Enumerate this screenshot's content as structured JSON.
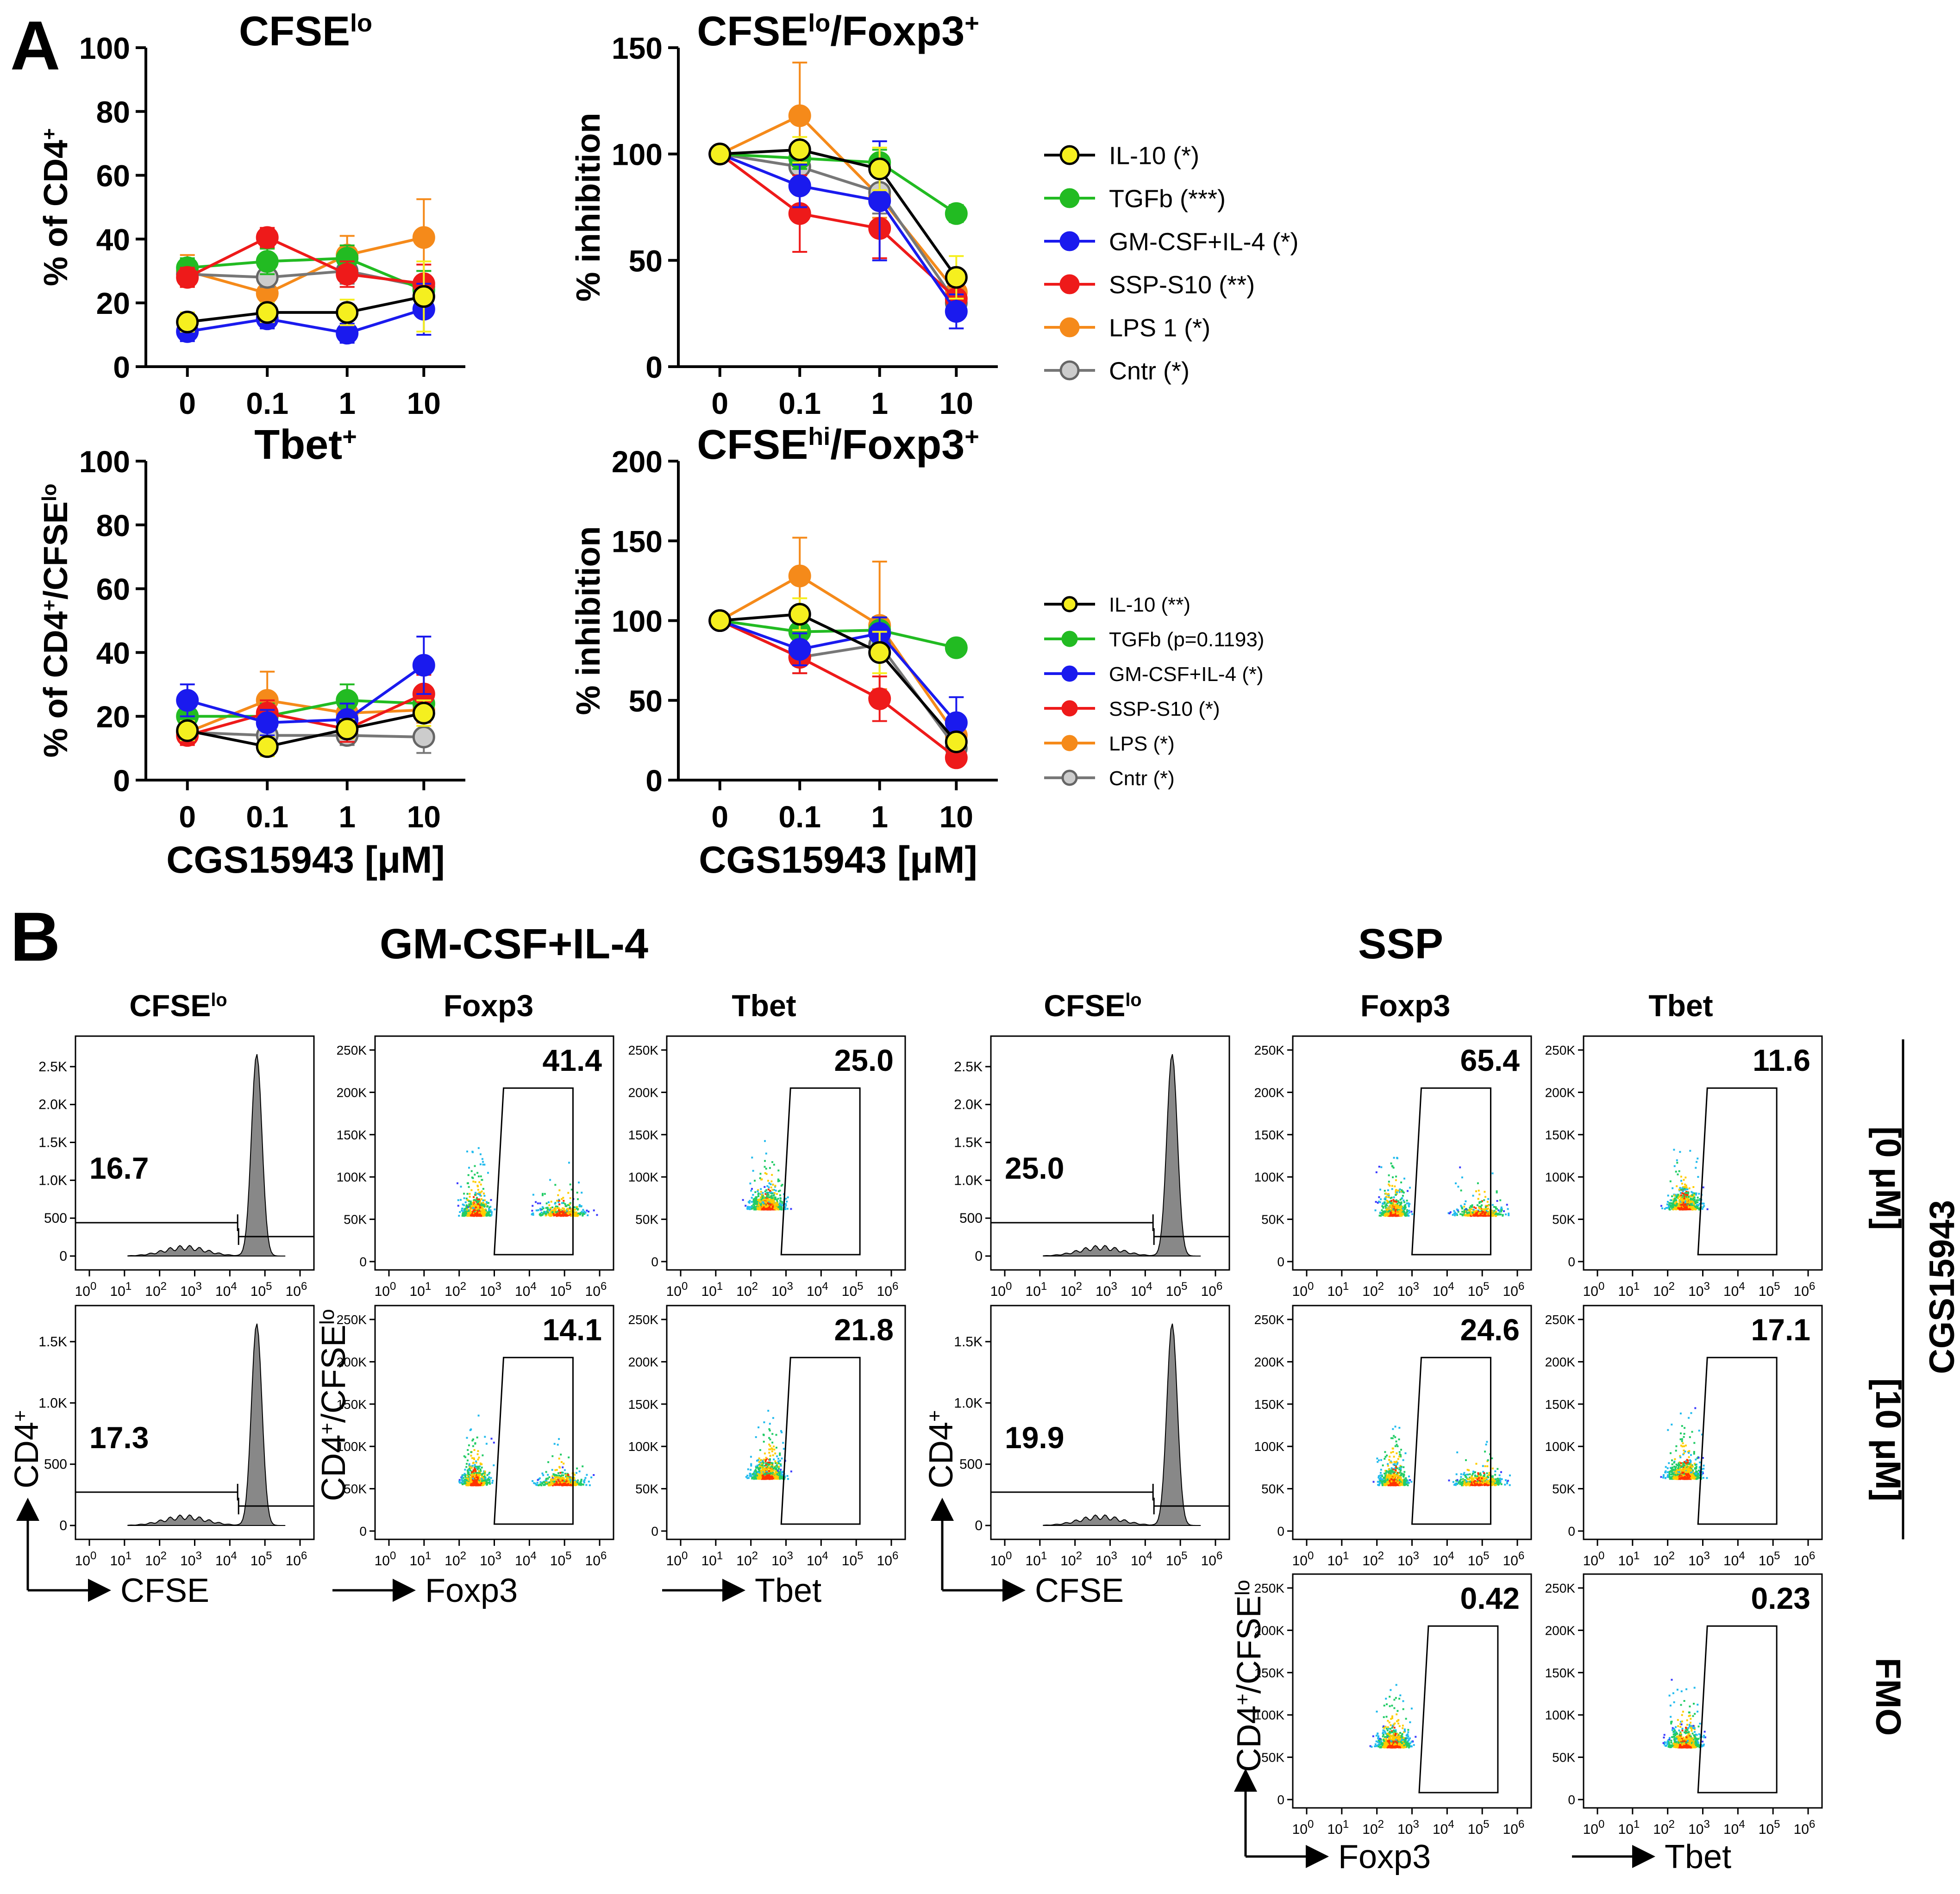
{
  "panels": {
    "A": {
      "letter": "A"
    },
    "B": {
      "letter": "B",
      "group_gm": "GM-CSF+IL-4",
      "group_ssp": "SSP"
    }
  },
  "colors": {
    "IL-10": "#f5ef1f",
    "TGFb": "#22bb22",
    "GM-CSF+IL-4": "#1a1aee",
    "SSP-S10": "#ee1a1a",
    "LPS": "#f58a1a",
    "Cntr": "#cccccc"
  },
  "legend_top": [
    "IL-10 (*)",
    "TGFb (***)",
    "GM-CSF+IL-4 (*)",
    "SSP-S10 (**)",
    "LPS 1 (*)",
    "Cntr (*)"
  ],
  "legend_bottom": [
    "IL-10 (**)",
    "TGFb (p=0.1193)",
    "GM-CSF+IL-4 (*)",
    "SSP-S10 (*)",
    "LPS (*)",
    "Cntr (*)"
  ],
  "chart_data": [
    {
      "id": "cfselo",
      "type": "line",
      "title": "CFSE",
      "title_sup": "lo",
      "ylabel": "% of CD4",
      "ylabel_sup": "+",
      "xlabel": "",
      "categories": [
        "0",
        "0.1",
        "1",
        "10"
      ],
      "ylim": [
        0,
        100
      ],
      "yticks": [
        0,
        20,
        40,
        60,
        80,
        100
      ],
      "series": [
        {
          "name": "LPS",
          "values": [
            30,
            23,
            35,
            40.5
          ],
          "err": [
            5,
            4,
            6,
            12
          ]
        },
        {
          "name": "Cntr",
          "values": [
            29,
            28,
            30,
            25
          ],
          "err": [
            3,
            3,
            4,
            5
          ]
        },
        {
          "name": "TGFb",
          "values": [
            31,
            33,
            34,
            24
          ],
          "err": [
            3,
            4,
            4,
            6
          ]
        },
        {
          "name": "SSP-S10",
          "values": [
            28,
            40.5,
            29,
            26
          ],
          "err": [
            3,
            3,
            4,
            6
          ]
        },
        {
          "name": "GM-CSF+IL-4",
          "values": [
            11,
            15,
            10.5,
            18
          ],
          "err": [
            3,
            3,
            3,
            8
          ]
        },
        {
          "name": "IL-10",
          "values": [
            14,
            17,
            17,
            22
          ],
          "err": [
            3,
            3,
            4,
            11
          ]
        }
      ]
    },
    {
      "id": "foxp3lo",
      "type": "line",
      "title": "CFSE",
      "title_sup": "lo",
      "title_rest": "/Foxp3",
      "title_rest_sup": "+",
      "ylabel": "% inhibition",
      "xlabel": "",
      "categories": [
        "0",
        "0.1",
        "1",
        "10"
      ],
      "ylim": [
        0,
        150
      ],
      "yticks": [
        0,
        50,
        100,
        150
      ],
      "series": [
        {
          "name": "LPS",
          "values": [
            100,
            118,
            80,
            35
          ],
          "err": [
            0,
            25,
            10,
            6
          ]
        },
        {
          "name": "Cntr",
          "values": [
            100,
            94,
            82,
            30
          ],
          "err": [
            0,
            10,
            10,
            6
          ]
        },
        {
          "name": "TGFb",
          "values": [
            100,
            98,
            96,
            72
          ],
          "err": [
            0,
            5,
            6,
            4
          ]
        },
        {
          "name": "SSP-S10",
          "values": [
            100,
            72,
            65,
            32
          ],
          "err": [
            0,
            18,
            14,
            6
          ]
        },
        {
          "name": "GM-CSF+IL-4",
          "values": [
            100,
            85,
            78,
            26
          ],
          "err": [
            0,
            10,
            28,
            8
          ]
        },
        {
          "name": "IL-10",
          "values": [
            100,
            102,
            93,
            42
          ],
          "err": [
            0,
            6,
            10,
            10
          ]
        }
      ]
    },
    {
      "id": "tbet",
      "type": "line",
      "title": "Tbet",
      "title_sup": "+",
      "ylabel": "% of CD4",
      "ylabel_sup": "+",
      "ylabel_rest": "/CFSE",
      "ylabel_rest_sup": "lo",
      "xlabel": "CGS15943 [μM]",
      "categories": [
        "0",
        "0.1",
        "1",
        "10"
      ],
      "ylim": [
        0,
        100
      ],
      "yticks": [
        0,
        20,
        40,
        60,
        80,
        100
      ],
      "series": [
        {
          "name": "LPS",
          "values": [
            15,
            25,
            21,
            22
          ],
          "err": [
            3,
            9,
            5,
            4
          ]
        },
        {
          "name": "Cntr",
          "values": [
            15,
            14,
            14,
            13.5
          ],
          "err": [
            3,
            3,
            3,
            5
          ]
        },
        {
          "name": "TGFb",
          "values": [
            20,
            20,
            25,
            24
          ],
          "err": [
            3,
            4,
            5,
            5
          ]
        },
        {
          "name": "SSP-S10",
          "values": [
            14,
            21,
            16,
            27
          ],
          "err": [
            3,
            4,
            4,
            6
          ]
        },
        {
          "name": "GM-CSF+IL-4",
          "values": [
            25,
            18,
            19,
            36
          ],
          "err": [
            5,
            4,
            5,
            9
          ]
        },
        {
          "name": "IL-10",
          "values": [
            15.5,
            10.5,
            16,
            21
          ],
          "err": [
            3,
            3,
            3,
            4
          ]
        }
      ]
    },
    {
      "id": "foxp3hi",
      "type": "line",
      "title": "CFSE",
      "title_sup": "hi",
      "title_rest": "/Foxp3",
      "title_rest_sup": "+",
      "ylabel": "% inhibition",
      "xlabel": "CGS15943 [μM]",
      "categories": [
        "0",
        "0.1",
        "1",
        "10"
      ],
      "ylim": [
        0,
        200
      ],
      "yticks": [
        0,
        50,
        100,
        150,
        200
      ],
      "series": [
        {
          "name": "LPS",
          "values": [
            100,
            128,
            97,
            28
          ],
          "err": [
            0,
            24,
            40,
            8
          ]
        },
        {
          "name": "Cntr",
          "values": [
            100,
            77,
            85,
            20
          ],
          "err": [
            0,
            10,
            10,
            6
          ]
        },
        {
          "name": "TGFb",
          "values": [
            100,
            93,
            94,
            83
          ],
          "err": [
            0,
            8,
            8,
            4
          ]
        },
        {
          "name": "SSP-S10",
          "values": [
            100,
            77,
            51,
            14
          ],
          "err": [
            0,
            10,
            14,
            4
          ]
        },
        {
          "name": "GM-CSF+IL-4",
          "values": [
            100,
            82,
            92,
            36
          ],
          "err": [
            0,
            10,
            10,
            16
          ]
        },
        {
          "name": "IL-10",
          "values": [
            100,
            104,
            80,
            24
          ],
          "err": [
            0,
            10,
            13,
            5
          ]
        }
      ]
    }
  ],
  "flow": {
    "col_titles": {
      "cfse": "CFSE",
      "cfse_sup": "lo",
      "foxp3": "Foxp3",
      "tbet": "Tbet"
    },
    "axis_labels": {
      "cd4": "CD4",
      "cd4_sup": "+",
      "cd4cfse": "CD4",
      "cd4cfse_sup": "+",
      "cd4cfse_rest": "/CFSE",
      "cd4cfse_rest_sup": "lo",
      "cfse": "CFSE",
      "foxp3": "Foxp3",
      "tbet": "Tbet"
    },
    "row_labels": {
      "r0": "[0 μM]",
      "r10": "[10 μM]",
      "fmo": "FMO",
      "drug": "CGS15943"
    },
    "hist_yticks_top": [
      "0",
      "500",
      "1.0K",
      "1.5K",
      "2.0K",
      "2.5K"
    ],
    "hist_yticks_bottom": [
      "0",
      "500",
      "1.0K",
      "1.5K"
    ],
    "dot_yticks": [
      "0",
      "50K",
      "100K",
      "150K",
      "200K",
      "250K"
    ],
    "gate_values": {
      "gm_cfse_0": "16.7",
      "gm_foxp3_0": "41.4",
      "gm_tbet_0": "25.0",
      "ssp_cfse_0": "25.0",
      "ssp_foxp3_0": "65.4",
      "ssp_tbet_0": "11.6",
      "gm_cfse_10": "17.3",
      "gm_foxp3_10": "14.1",
      "gm_tbet_10": "21.8",
      "ssp_cfse_10": "19.9",
      "ssp_foxp3_10": "24.6",
      "ssp_tbet_10": "17.1",
      "fmo_foxp3": "0.42",
      "fmo_tbet": "0.23"
    }
  }
}
